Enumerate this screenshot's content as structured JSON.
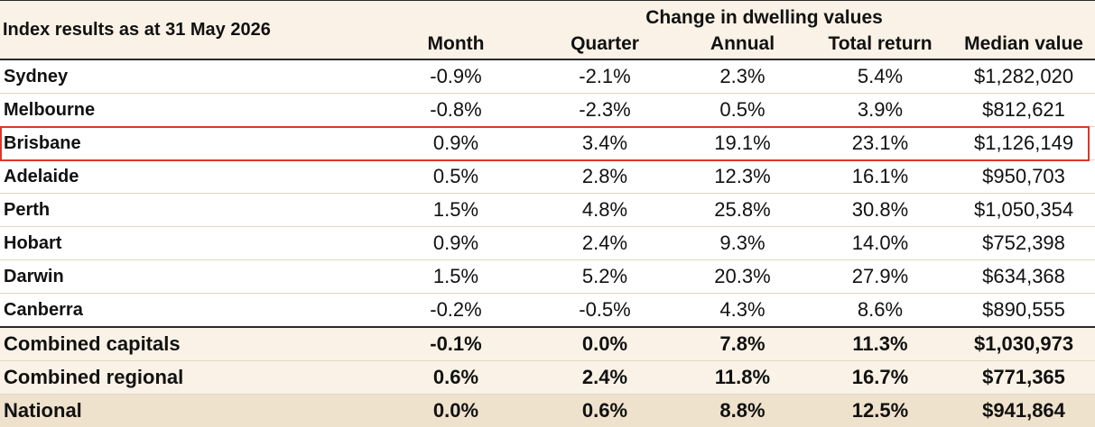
{
  "table": {
    "index_label": "Index results as at 31 May 2026",
    "group_label": "Change in dwelling values",
    "columns": [
      "Month",
      "Quarter",
      "Annual",
      "Total return",
      "Median value"
    ],
    "rows": [
      {
        "name": "Sydney",
        "values": [
          "-0.9%",
          "-2.1%",
          "2.3%",
          "5.4%",
          "$1,282,020"
        ]
      },
      {
        "name": "Melbourne",
        "values": [
          "-0.8%",
          "-2.3%",
          "0.5%",
          "3.9%",
          "$812,621"
        ]
      },
      {
        "name": "Brisbane",
        "values": [
          "0.9%",
          "3.4%",
          "19.1%",
          "23.1%",
          "$1,126,149"
        ]
      },
      {
        "name": "Adelaide",
        "values": [
          "0.5%",
          "2.8%",
          "12.3%",
          "16.1%",
          "$950,703"
        ]
      },
      {
        "name": "Perth",
        "values": [
          "1.5%",
          "4.8%",
          "25.8%",
          "30.8%",
          "$1,050,354"
        ]
      },
      {
        "name": "Hobart",
        "values": [
          "0.9%",
          "2.4%",
          "9.3%",
          "14.0%",
          "$752,398"
        ]
      },
      {
        "name": "Darwin",
        "values": [
          "1.5%",
          "5.2%",
          "20.3%",
          "27.9%",
          "$634,368"
        ]
      },
      {
        "name": "Canberra",
        "values": [
          "-0.2%",
          "-0.5%",
          "4.3%",
          "8.6%",
          "$890,555"
        ]
      },
      {
        "name": "Combined capitals",
        "values": [
          "-0.1%",
          "0.0%",
          "7.8%",
          "11.3%",
          "$1,030,973"
        ]
      },
      {
        "name": "Combined regional",
        "values": [
          "0.6%",
          "2.4%",
          "11.8%",
          "16.7%",
          "$771,365"
        ]
      },
      {
        "name": "National",
        "values": [
          "0.0%",
          "0.6%",
          "8.8%",
          "12.5%",
          "$941,864"
        ]
      }
    ],
    "highlight_color": "#e0352b",
    "header_bg": "#faf2e6",
    "national_bg": "#efe2cc"
  }
}
